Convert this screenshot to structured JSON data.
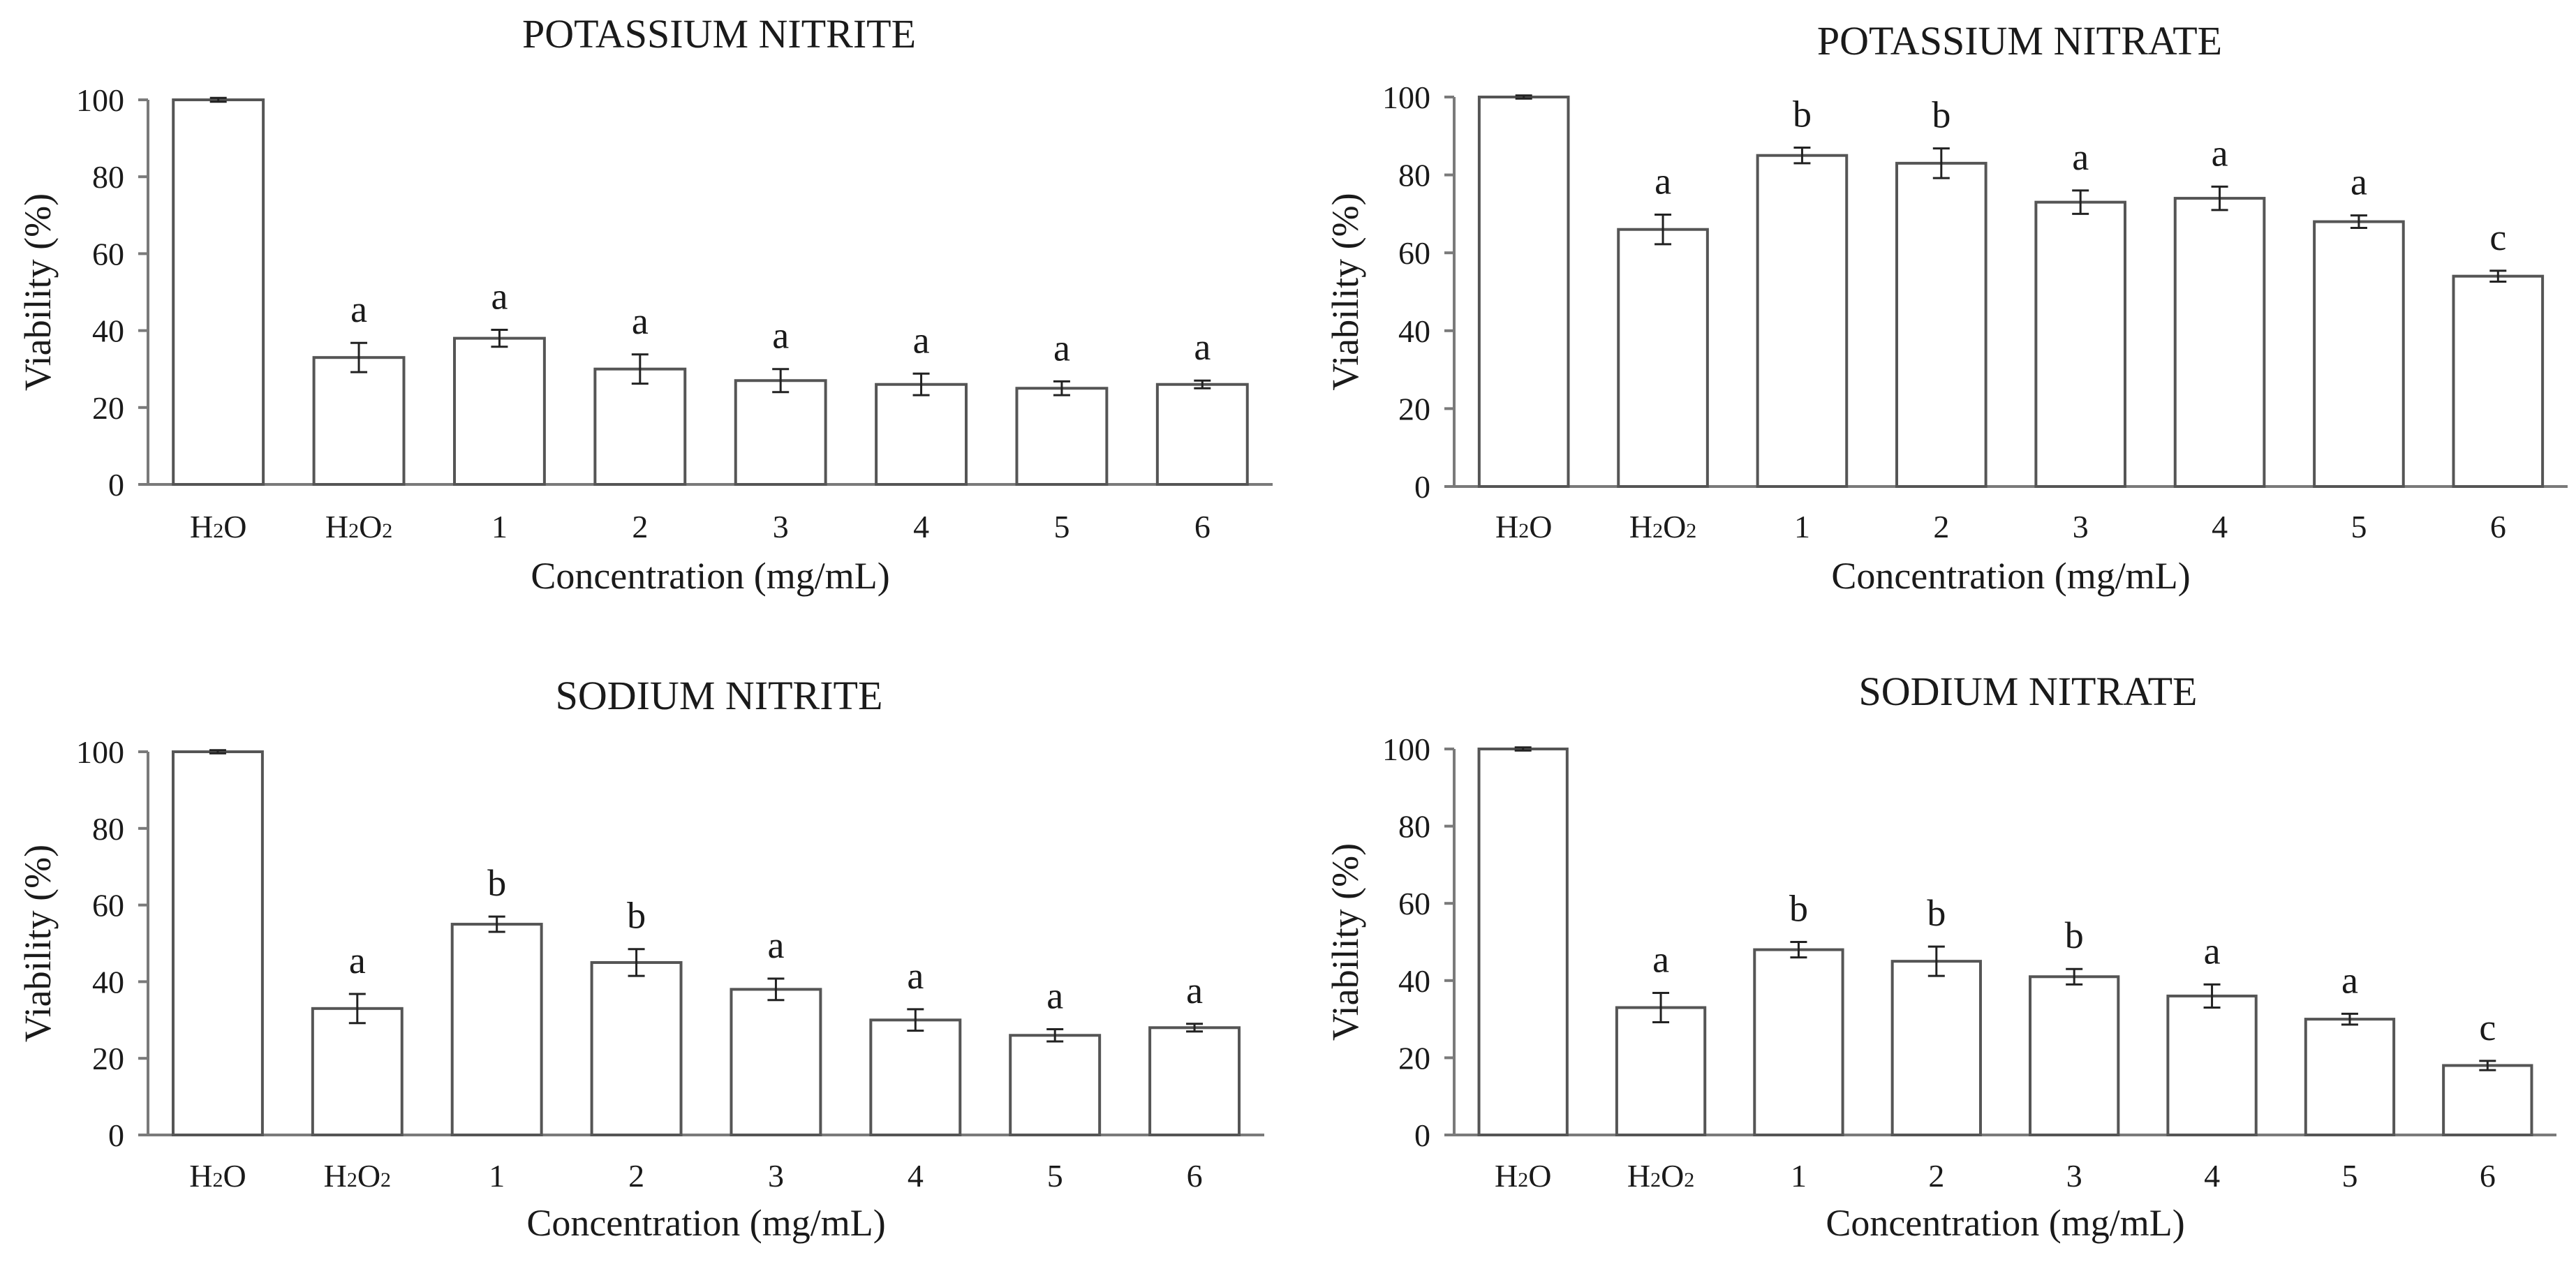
{
  "chart_data": [
    {
      "type": "bar",
      "title": "POTASSIUM NITRITE",
      "xlabel": "Concentration (mg/mL)",
      "ylabel": "Viability (%)",
      "ylim": [
        0,
        100
      ],
      "yticks": [
        "0",
        "20",
        "40",
        "60",
        "80",
        "100"
      ],
      "categories": [
        "H2O",
        "H2O2",
        "1",
        "2",
        "3",
        "4",
        "5",
        "6"
      ],
      "values": [
        100,
        33,
        38,
        30,
        27,
        26,
        25,
        26
      ],
      "errors": [
        0.5,
        3.8,
        2.2,
        3.8,
        3.0,
        2.8,
        1.8,
        1.0
      ],
      "significance": [
        "",
        "a",
        "a",
        "a",
        "a",
        "a",
        "a",
        "a"
      ]
    },
    {
      "type": "bar",
      "title": "POTASSIUM NITRATE",
      "xlabel": "Concentration (mg/mL)",
      "ylabel": "Viability (%)",
      "ylim": [
        0,
        100
      ],
      "yticks": [
        "0",
        "20",
        "40",
        "60",
        "80",
        "100"
      ],
      "categories": [
        "H2O",
        "H2O2",
        "1",
        "2",
        "3",
        "4",
        "5",
        "6"
      ],
      "values": [
        100,
        66,
        85,
        83,
        73,
        74,
        68,
        54
      ],
      "errors": [
        0.4,
        3.8,
        2.0,
        3.8,
        3.0,
        3.0,
        1.6,
        1.4
      ],
      "significance": [
        "",
        "a",
        "b",
        "b",
        "a",
        "a",
        "a",
        "c"
      ]
    },
    {
      "type": "bar",
      "title": "SODIUM NITRITE",
      "xlabel": "Concentration (mg/mL)",
      "ylabel": "Viability (%)",
      "ylim": [
        0,
        100
      ],
      "yticks": [
        "0",
        "20",
        "40",
        "60",
        "80",
        "100"
      ],
      "categories": [
        "H2O",
        "H2O2",
        "1",
        "2",
        "3",
        "4",
        "5",
        "6"
      ],
      "values": [
        100,
        33,
        55,
        45,
        38,
        30,
        26,
        28
      ],
      "errors": [
        0.4,
        3.8,
        2.0,
        3.5,
        2.8,
        2.8,
        1.6,
        1.0
      ],
      "significance": [
        "",
        "a",
        "b",
        "b",
        "a",
        "a",
        "a",
        "a"
      ]
    },
    {
      "type": "bar",
      "title": "SODIUM NITRATE",
      "xlabel": "Concentration (mg/mL)",
      "ylabel": "Viability (%)",
      "ylim": [
        0,
        100
      ],
      "yticks": [
        "0",
        "20",
        "40",
        "60",
        "80",
        "100"
      ],
      "categories": [
        "H2O",
        "H2O2",
        "1",
        "2",
        "3",
        "4",
        "5",
        "6"
      ],
      "values": [
        100,
        33,
        48,
        45,
        41,
        36,
        30,
        18
      ],
      "errors": [
        0.4,
        3.8,
        2.0,
        3.8,
        2.0,
        3.0,
        1.4,
        1.2
      ],
      "significance": [
        "",
        "a",
        "b",
        "b",
        "b",
        "a",
        "a",
        "c"
      ]
    }
  ]
}
